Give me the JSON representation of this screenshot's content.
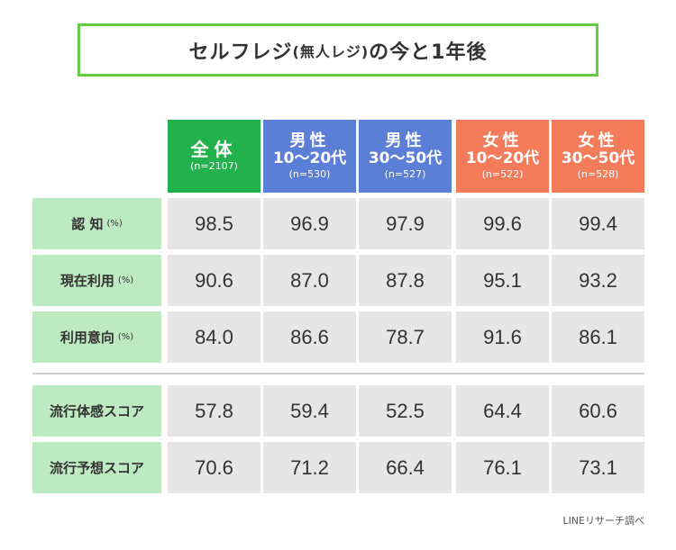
{
  "title": {
    "main": "セルフレジ",
    "sub": "(無人レジ)",
    "tail": "の今と1年後"
  },
  "source": "LINEリサーチ調べ",
  "colors": {
    "title_border": "#66cc44",
    "total": "#22b14c",
    "male": "#5b7fd6",
    "female": "#f47c5a",
    "row_label_bg": "#bdeac1",
    "cell_bg": "#e6e6e6"
  },
  "columns": [
    {
      "line1": "全体",
      "line2": "",
      "n": "(n=2107)",
      "group": "total"
    },
    {
      "line1": "男性",
      "line2": "10〜20代",
      "n": "(n=530)",
      "group": "male"
    },
    {
      "line1": "男性",
      "line2": "30〜50代",
      "n": "(n=527)",
      "group": "male"
    },
    {
      "line1": "女性",
      "line2": "10〜20代",
      "n": "(n=522)",
      "group": "female"
    },
    {
      "line1": "女性",
      "line2": "30〜50代",
      "n": "(n=528)",
      "group": "female"
    }
  ],
  "rows": [
    {
      "label": "認 知",
      "unit": "(%)",
      "values": [
        "98.5",
        "96.9",
        "97.9",
        "99.6",
        "99.4"
      ]
    },
    {
      "label": "現在利用",
      "unit": "(%)",
      "values": [
        "90.6",
        "87.0",
        "87.8",
        "95.1",
        "93.2"
      ]
    },
    {
      "label": "利用意向",
      "unit": "(%)",
      "values": [
        "84.0",
        "86.6",
        "78.7",
        "91.6",
        "86.1"
      ]
    },
    {
      "label": "流行体感スコア",
      "unit": "",
      "values": [
        "57.8",
        "59.4",
        "52.5",
        "64.4",
        "60.6"
      ]
    },
    {
      "label": "流行予想スコア",
      "unit": "",
      "values": [
        "70.6",
        "71.2",
        "66.4",
        "76.1",
        "73.1"
      ]
    }
  ],
  "chart_data": {
    "type": "table",
    "title": "セルフレジ(無人レジ)の今と1年後",
    "columns": [
      "全体 (n=2107)",
      "男性 10〜20代 (n=530)",
      "男性 30〜50代 (n=527)",
      "女性 10〜20代 (n=522)",
      "女性 30〜50代 (n=528)"
    ],
    "rows": [
      {
        "name": "認知 (%)",
        "values": [
          98.5,
          96.9,
          97.9,
          99.6,
          99.4
        ]
      },
      {
        "name": "現在利用 (%)",
        "values": [
          90.6,
          87.0,
          87.8,
          95.1,
          93.2
        ]
      },
      {
        "name": "利用意向 (%)",
        "values": [
          84.0,
          86.6,
          78.7,
          91.6,
          86.1
        ]
      },
      {
        "name": "流行体感スコア",
        "values": [
          57.8,
          59.4,
          52.5,
          64.4,
          60.6
        ]
      },
      {
        "name": "流行予想スコア",
        "values": [
          70.6,
          71.2,
          66.4,
          76.1,
          73.1
        ]
      }
    ]
  }
}
